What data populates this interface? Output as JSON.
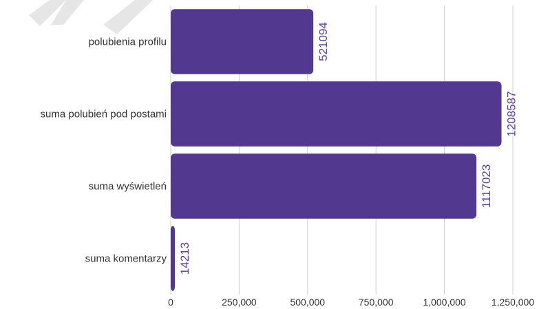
{
  "chart_data": {
    "type": "bar",
    "orientation": "horizontal",
    "categories": [
      "polubienia profilu",
      "suma polubień pod postami",
      "suma wyświetleń",
      "suma komentarzy"
    ],
    "values": [
      521094,
      1208587,
      1117023,
      14213
    ],
    "value_labels": [
      "521094",
      "1208587",
      "1117023",
      "14213"
    ],
    "xlim": [
      0,
      1250000
    ],
    "xticks": [
      0,
      250000,
      500000,
      750000,
      1000000,
      1250000
    ],
    "xtick_labels": [
      "0",
      "250,000",
      "500,000",
      "750,000",
      "1,000,000",
      "1,250,000"
    ],
    "grid": true,
    "title": "",
    "xlabel": "",
    "ylabel": "",
    "colors": {
      "bar": "#52398f",
      "label": "#5a3f9e",
      "grid": "#cfcfcf"
    }
  }
}
